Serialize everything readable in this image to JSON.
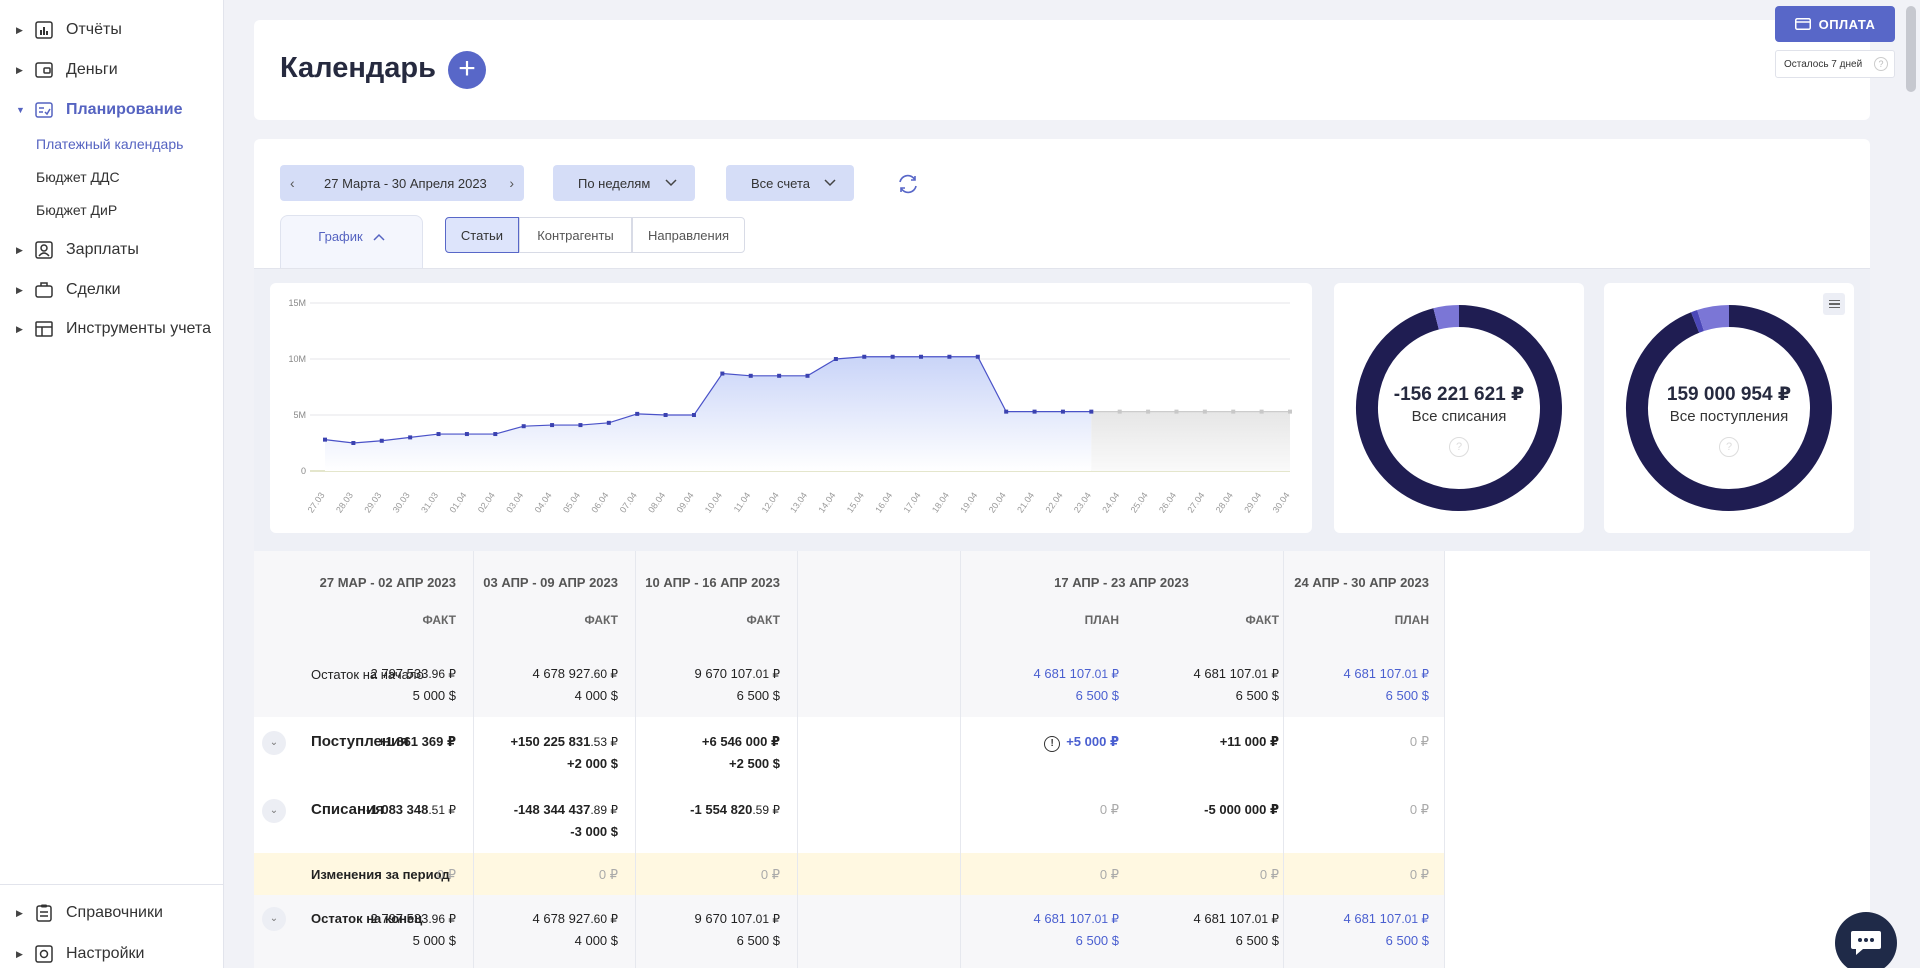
{
  "sidebar": {
    "items": [
      {
        "label": "Отчёты",
        "icon": "bar-chart-icon"
      },
      {
        "label": "Деньги",
        "icon": "wallet-icon"
      },
      {
        "label": "Планирование",
        "icon": "planning-icon"
      },
      {
        "label": "Зарплаты",
        "icon": "person-icon"
      },
      {
        "label": "Сделки",
        "icon": "briefcase-icon"
      },
      {
        "label": "Инструменты учета",
        "icon": "table-icon"
      }
    ],
    "sub_items": [
      "Платежный календарь",
      "Бюджет ДДС",
      "Бюджет ДиР"
    ],
    "bottom_items": [
      {
        "label": "Справочники",
        "icon": "clipboard-icon"
      },
      {
        "label": "Настройки",
        "icon": "gear-icon"
      }
    ]
  },
  "header": {
    "title": "Календарь"
  },
  "payment": {
    "label": "ОПЛАТА",
    "trial": "Осталось 7 дней"
  },
  "filters": {
    "period": "27 Марта - 30 Апреля 2023",
    "grouping": "По неделям",
    "accounts": "Все счета"
  },
  "tabs": {
    "graph": "График",
    "segments": [
      "Статьи",
      "Контрагенты",
      "Направления"
    ]
  },
  "colors": {
    "accent": "#5867c8",
    "donut_dark": "#1f1d52",
    "donut_light": "#7b76d6"
  },
  "chart_data": [
    {
      "type": "area",
      "x": [
        "27.03",
        "28.03",
        "29.03",
        "30.03",
        "31.03",
        "01.04",
        "02.04",
        "03.04",
        "04.04",
        "05.04",
        "06.04",
        "07.04",
        "08.04",
        "09.04",
        "10.04",
        "11.04",
        "12.04",
        "13.04",
        "14.04",
        "15.04",
        "16.04",
        "17.04",
        "18.04",
        "19.04",
        "20.04",
        "21.04",
        "22.04",
        "23.04",
        "24.04",
        "25.04",
        "26.04",
        "27.04",
        "28.04",
        "29.04",
        "30.04"
      ],
      "series": [
        {
          "values": [
            2.8,
            2.5,
            2.7,
            3.0,
            3.3,
            3.3,
            3.3,
            4.0,
            4.1,
            4.1,
            4.3,
            5.1,
            5.0,
            5.0,
            8.7,
            8.5,
            8.5,
            8.5,
            10.0,
            10.2,
            10.2,
            10.2,
            10.2,
            10.2,
            5.3,
            5.3,
            5.3,
            5.3,
            5.3,
            5.3,
            5.3,
            5.3,
            5.3,
            5.3,
            5.3
          ]
        }
      ],
      "plan_from": "23.04",
      "yticks": [
        "0",
        "5M",
        "10M",
        "15M"
      ],
      "ylim": [
        0,
        15
      ]
    },
    {
      "type": "pie",
      "center_value": "-156 221 621 ₽",
      "center_label": "Все списания",
      "values": [
        96,
        4
      ]
    },
    {
      "type": "pie",
      "center_value": "159 000 954 ₽",
      "center_label": "Все поступления",
      "values": [
        94,
        1,
        5
      ]
    }
  ],
  "table": {
    "weeks": [
      {
        "title": "27 МАР - 02 АПР 2023",
        "cols": [
          "ФАКТ"
        ]
      },
      {
        "title": "03 АПР - 09 АПР 2023",
        "cols": [
          "ФАКТ"
        ]
      },
      {
        "title": "10 АПР - 16 АПР 2023",
        "cols": [
          "ФАКТ"
        ]
      },
      {
        "title": "17 АПР - 23 АПР 2023",
        "cols": [
          "ПЛАН",
          "ФАКТ"
        ]
      },
      {
        "title": "24 АПР - 30 АПР 2023",
        "cols": [
          "ПЛАН"
        ]
      }
    ],
    "rows": {
      "start": {
        "label": "Остаток на начало"
      },
      "income": {
        "label": "Поступления"
      },
      "expense": {
        "label": "Списания"
      },
      "change": {
        "label": "Изменения за период"
      },
      "end": {
        "label": "Остаток на конец"
      }
    },
    "cells": {
      "start": [
        {
          "main": "2 797 533",
          "dec": ".96 ₽",
          "sub": "5 000 $"
        },
        {
          "main": "4 678 927",
          "dec": ".60 ₽",
          "sub": "4 000 $"
        },
        {
          "main": "9 670 107",
          "dec": ".01 ₽",
          "sub": "6 500 $"
        },
        {
          "main": "4 681 107",
          "dec": ".01 ₽",
          "sub": "6 500 $"
        },
        {
          "main": "4 681 107",
          "dec": ".01 ₽",
          "sub": "6 500 $"
        },
        {
          "main": "4 681 107",
          "dec": ".01 ₽",
          "sub": "6 500 $"
        }
      ],
      "income": [
        {
          "main": "+1 861 369 ₽",
          "sub": ""
        },
        {
          "main": "+150 225 831",
          "dec": ".53 ₽",
          "sub": "+2 000 $"
        },
        {
          "main": "+6 546 000 ₽",
          "sub": "+2 500 $"
        },
        {
          "main": "+5 000 ₽",
          "sub": ""
        },
        {
          "main": "+11 000 ₽",
          "sub": ""
        },
        {
          "main": "0 ₽",
          "sub": ""
        }
      ],
      "expense": [
        {
          "main": "-1 083 348",
          "dec": ".51 ₽",
          "sub": ""
        },
        {
          "main": "-148 344 437",
          "dec": ".89 ₽",
          "sub": "-3 000 $"
        },
        {
          "main": "-1 554 820",
          "dec": ".59 ₽",
          "sub": ""
        },
        {
          "main": "0 ₽",
          "sub": ""
        },
        {
          "main": "-5 000 000 ₽",
          "sub": ""
        },
        {
          "main": "0 ₽",
          "sub": ""
        }
      ],
      "change": [
        "0 ₽",
        "0 ₽",
        "0 ₽",
        "0 ₽",
        "0 ₽",
        "0 ₽"
      ],
      "end": [
        {
          "main": "2 797 533",
          "dec": ".96 ₽",
          "sub": "5 000 $"
        },
        {
          "main": "4 678 927",
          "dec": ".60 ₽",
          "sub": "4 000 $"
        },
        {
          "main": "9 670 107",
          "dec": ".01 ₽",
          "sub": "6 500 $"
        },
        {
          "main": "4 681 107",
          "dec": ".01 ₽",
          "sub": "6 500 $"
        },
        {
          "main": "4 681 107",
          "dec": ".01 ₽",
          "sub": "6 500 $"
        },
        {
          "main": "4 681 107",
          "dec": ".01 ₽",
          "sub": "6 500 $"
        }
      ]
    }
  }
}
